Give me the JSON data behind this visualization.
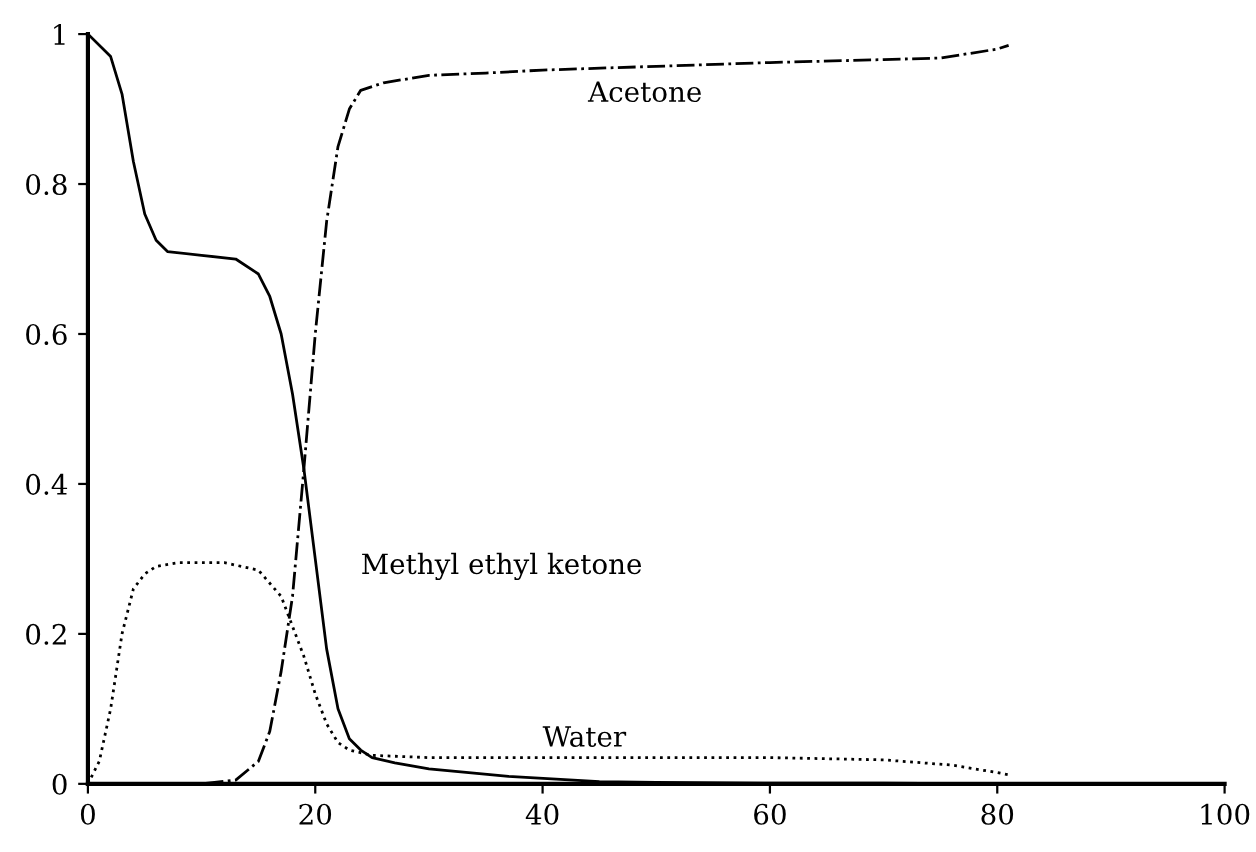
{
  "chart_data": {
    "type": "line",
    "xlim": [
      0,
      100
    ],
    "ylim": [
      0,
      1
    ],
    "xticks": [
      0,
      20,
      40,
      60,
      80,
      100
    ],
    "yticks": [
      0,
      0.2,
      0.4,
      0.6,
      0.8,
      1
    ],
    "grid": false,
    "legend": false,
    "marker": "none",
    "series": [
      {
        "name": "Methyl ethyl ketone",
        "color": "#000000",
        "line_style": "solid",
        "x": [
          0,
          2,
          3,
          4,
          5,
          6,
          7,
          10,
          13,
          15,
          16,
          17,
          18,
          19,
          20,
          21,
          22,
          23,
          24,
          25,
          27,
          30,
          37,
          45,
          50,
          60,
          70,
          80,
          90,
          98
        ],
        "values": [
          1.0,
          0.97,
          0.92,
          0.83,
          0.76,
          0.725,
          0.71,
          0.705,
          0.7,
          0.68,
          0.65,
          0.6,
          0.52,
          0.42,
          0.3,
          0.18,
          0.1,
          0.06,
          0.045,
          0.035,
          0.028,
          0.02,
          0.01,
          0.003,
          0.002,
          0.001,
          0.001,
          0,
          0,
          0
        ]
      },
      {
        "name": "Acetone",
        "color": "#000000",
        "line_style": "dashdot",
        "x": [
          0,
          10,
          13,
          15,
          16,
          17,
          18,
          19,
          20,
          21,
          22,
          23,
          24,
          26,
          30,
          35,
          40,
          50,
          60,
          70,
          75,
          80,
          81
        ],
        "values": [
          0,
          0,
          0.005,
          0.03,
          0.07,
          0.15,
          0.25,
          0.42,
          0.6,
          0.75,
          0.85,
          0.9,
          0.925,
          0.935,
          0.945,
          0.948,
          0.952,
          0.957,
          0.962,
          0.966,
          0.968,
          0.98,
          0.985
        ]
      },
      {
        "name": "Water",
        "color": "#000000",
        "line_style": "dotted",
        "x": [
          0,
          1,
          2,
          3,
          4,
          5,
          6,
          8,
          12,
          15,
          17,
          18,
          19,
          20,
          21,
          22,
          23,
          25,
          30,
          40,
          60,
          70,
          76,
          80,
          81
        ],
        "values": [
          0,
          0.03,
          0.1,
          0.2,
          0.26,
          0.28,
          0.29,
          0.295,
          0.295,
          0.285,
          0.25,
          0.21,
          0.17,
          0.12,
          0.08,
          0.055,
          0.045,
          0.038,
          0.035,
          0.035,
          0.035,
          0.032,
          0.025,
          0.015,
          0.012
        ]
      }
    ]
  }
}
